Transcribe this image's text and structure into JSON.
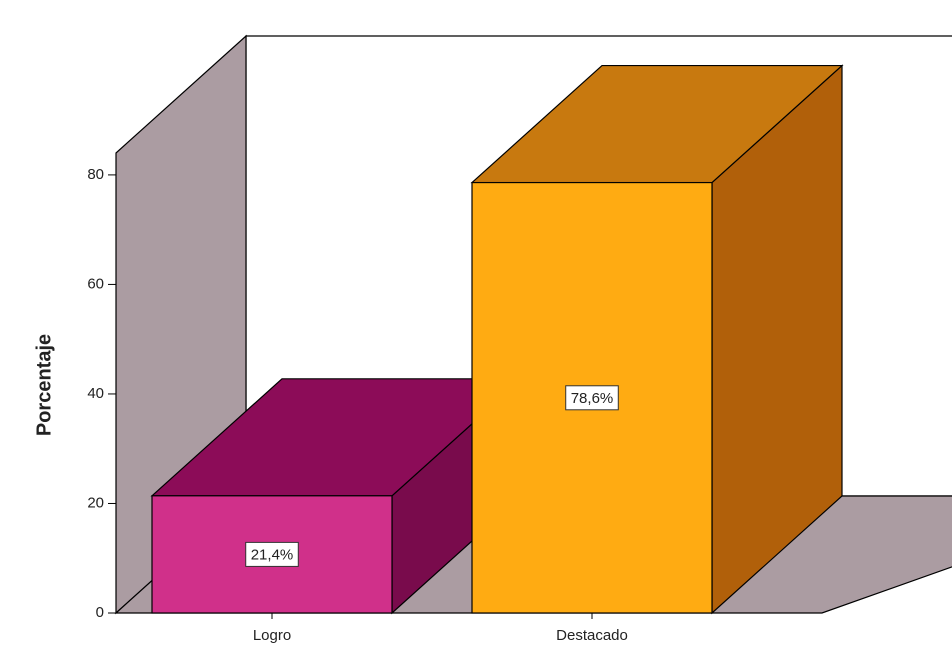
{
  "chart_data": {
    "type": "bar3d",
    "categories": [
      "Logro",
      "Destacado"
    ],
    "values": [
      21.4,
      78.6
    ],
    "value_labels": [
      "21,4%",
      "78,6%"
    ],
    "colors": [
      "#d0308a",
      "#ffab12"
    ],
    "top_colors": [
      "#8c0c58",
      "#c8790f"
    ],
    "side_colors": [
      "#790b4c",
      "#b1600a"
    ],
    "y_label": "Porcentaje",
    "ylim": [
      0,
      84
    ],
    "yticks": [
      0,
      20,
      40,
      60,
      80
    ]
  }
}
